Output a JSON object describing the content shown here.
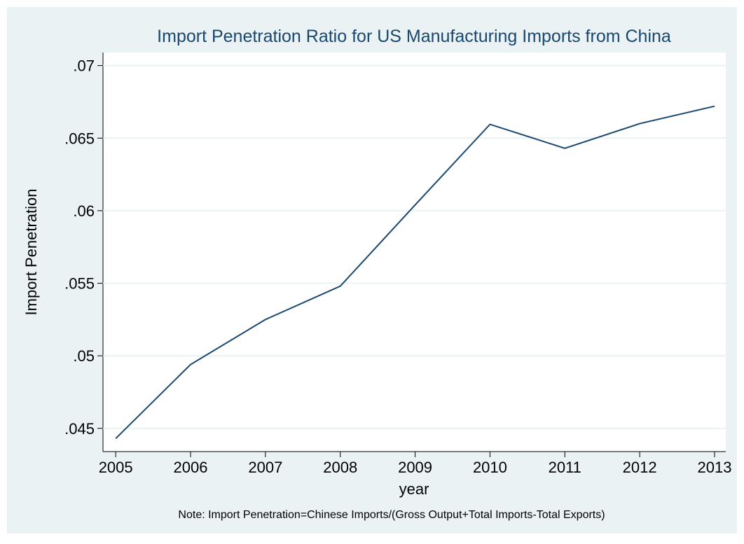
{
  "chart_data": {
    "type": "line",
    "title": "Import Penetration Ratio for US Manufacturing Imports from China",
    "xlabel": "year",
    "ylabel": "Import Penetration",
    "note": "Note: Import Penetration=Chinese Imports/(Gross Output+Total Imports-Total Exports)",
    "x": [
      2005,
      2006,
      2007,
      2008,
      2009,
      2010,
      2011,
      2012,
      2013
    ],
    "series": [
      {
        "name": "Import Penetration",
        "color": "#1a476f",
        "values": [
          0.0443,
          0.0494,
          0.0525,
          0.0548,
          0.0604,
          0.06595,
          0.0643,
          0.066,
          0.0672
        ]
      }
    ],
    "xlim": [
      2004.83,
      2013.15
    ],
    "xticks": [
      2005,
      2006,
      2007,
      2008,
      2009,
      2010,
      2011,
      2012,
      2013
    ],
    "ylim": [
      0.0434,
      0.0709
    ],
    "yticks": [
      {
        "value": 0.045,
        "label": ".045"
      },
      {
        "value": 0.05,
        "label": ".05"
      },
      {
        "value": 0.055,
        "label": ".055"
      },
      {
        "value": 0.06,
        "label": ".06"
      },
      {
        "value": 0.065,
        "label": ".065"
      },
      {
        "value": 0.07,
        "label": ".07"
      }
    ],
    "grid": true
  }
}
